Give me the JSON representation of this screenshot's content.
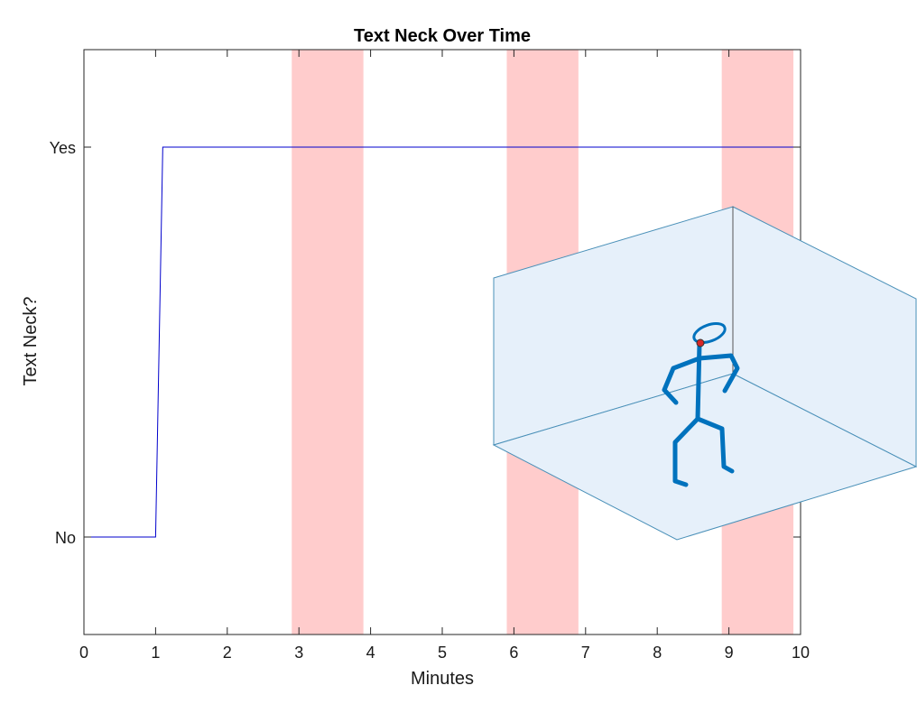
{
  "chart_data": {
    "type": "line",
    "title": "Text Neck Over Time",
    "xlabel": "Minutes",
    "ylabel": "Text Neck?",
    "xlim": [
      0,
      10
    ],
    "ylim": [
      -0.25,
      1.25
    ],
    "x_ticks": [
      "0",
      "1",
      "2",
      "3",
      "4",
      "5",
      "6",
      "7",
      "8",
      "9",
      "10"
    ],
    "y_ticks": [
      {
        "value": 0,
        "label": "No"
      },
      {
        "value": 1,
        "label": "Yes"
      }
    ],
    "grid": false,
    "series": [
      {
        "color": "#0000cc",
        "x": [
          0,
          1,
          1.1,
          10
        ],
        "y": [
          0,
          0,
          1,
          1
        ]
      }
    ],
    "shaded_regions": [
      {
        "x_start": 2.9,
        "x_end": 3.9,
        "color": "#ffcccc"
      },
      {
        "x_start": 5.9,
        "x_end": 6.9,
        "color": "#ffcccc"
      },
      {
        "x_start": 8.9,
        "x_end": 9.9,
        "color": "#ffcccc"
      }
    ],
    "inset": {
      "type": "3d-stick-figure",
      "box_color": "#e6f0fa",
      "box_edge_color": "#4a90b8",
      "figure_color": "#0072bd",
      "marker_color": "#d62728"
    }
  }
}
